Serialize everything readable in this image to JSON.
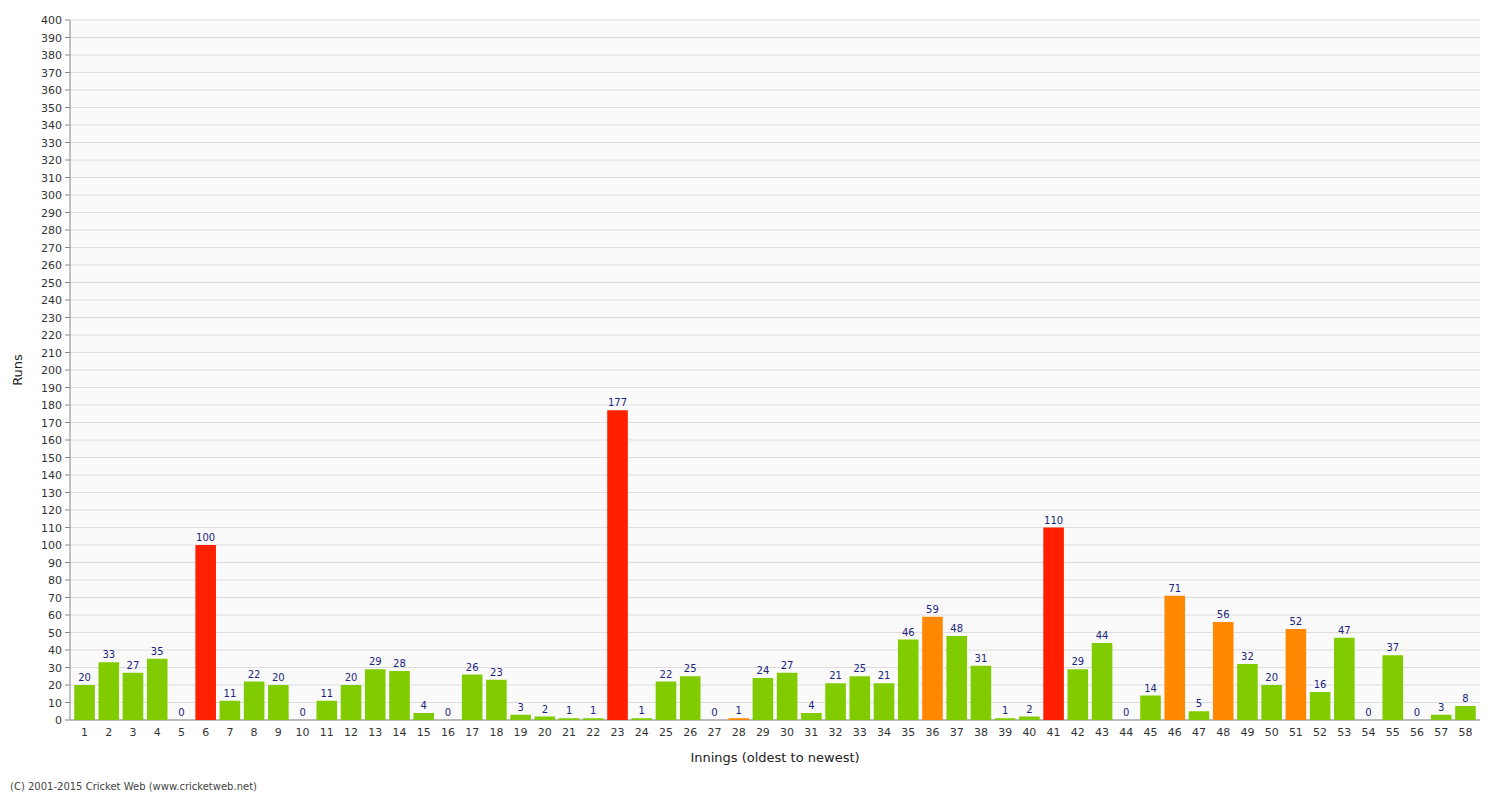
{
  "chart_data": {
    "type": "bar",
    "categories": [
      "1",
      "2",
      "3",
      "4",
      "5",
      "6",
      "7",
      "8",
      "9",
      "10",
      "11",
      "12",
      "13",
      "14",
      "15",
      "16",
      "17",
      "18",
      "19",
      "20",
      "21",
      "22",
      "23",
      "24",
      "25",
      "26",
      "27",
      "28",
      "29",
      "30",
      "31",
      "32",
      "33",
      "34",
      "35",
      "36",
      "37",
      "38",
      "39",
      "40",
      "41",
      "42",
      "43",
      "44",
      "45",
      "46",
      "47",
      "48",
      "49",
      "50",
      "51",
      "52",
      "53",
      "54",
      "55",
      "56",
      "57",
      "58"
    ],
    "values": [
      20,
      33,
      27,
      35,
      0,
      100,
      11,
      22,
      20,
      0,
      11,
      20,
      29,
      28,
      4,
      0,
      26,
      23,
      3,
      2,
      1,
      1,
      177,
      1,
      22,
      25,
      0,
      1,
      24,
      27,
      4,
      21,
      25,
      21,
      46,
      59,
      48,
      31,
      1,
      2,
      110,
      29,
      44,
      0,
      14,
      71,
      5,
      56,
      32,
      20,
      52,
      16,
      47,
      0,
      37,
      0,
      3,
      8
    ],
    "colors": [
      "#80cc00",
      "#80cc00",
      "#80cc00",
      "#80cc00",
      "#80cc00",
      "#ff2000",
      "#80cc00",
      "#80cc00",
      "#80cc00",
      "#80cc00",
      "#80cc00",
      "#80cc00",
      "#80cc00",
      "#80cc00",
      "#80cc00",
      "#80cc00",
      "#80cc00",
      "#80cc00",
      "#80cc00",
      "#80cc00",
      "#80cc00",
      "#80cc00",
      "#ff2000",
      "#80cc00",
      "#80cc00",
      "#80cc00",
      "#80cc00",
      "#ff8800",
      "#80cc00",
      "#80cc00",
      "#80cc00",
      "#80cc00",
      "#80cc00",
      "#80cc00",
      "#80cc00",
      "#ff8800",
      "#80cc00",
      "#80cc00",
      "#80cc00",
      "#80cc00",
      "#ff2000",
      "#80cc00",
      "#80cc00",
      "#80cc00",
      "#80cc00",
      "#ff8800",
      "#80cc00",
      "#ff8800",
      "#80cc00",
      "#80cc00",
      "#ff8800",
      "#80cc00",
      "#80cc00",
      "#80cc00",
      "#80cc00",
      "#80cc00",
      "#80cc00",
      "#80cc00"
    ],
    "x_label": "Innings (oldest to newest)",
    "y_label": "Runs",
    "ylim": [
      0,
      400
    ],
    "yticks": [
      0,
      10,
      20,
      30,
      40,
      50,
      60,
      70,
      80,
      90,
      100,
      110,
      120,
      130,
      140,
      150,
      160,
      170,
      180,
      190,
      200,
      210,
      220,
      230,
      240,
      250,
      260,
      270,
      280,
      290,
      300,
      310,
      320,
      330,
      340,
      350,
      360,
      370,
      380,
      390,
      400
    ],
    "grid": true,
    "data_labels": true,
    "annotations": [
      "(C) 2001-2015 Cricket Web (www.cricketweb.net)"
    ]
  }
}
